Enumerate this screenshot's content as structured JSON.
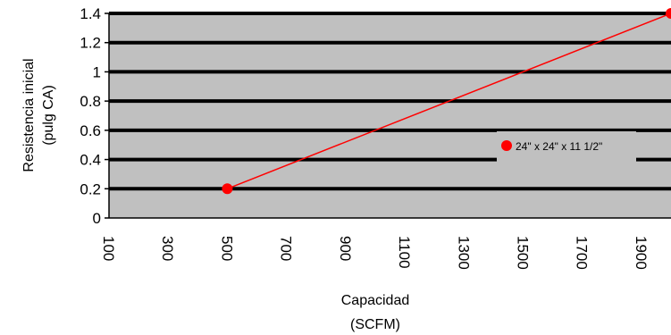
{
  "chart_data": {
    "type": "line",
    "title": "",
    "xlabel": [
      "Capacidad",
      "(SCFM)"
    ],
    "ylabel": [
      "Resistencia inicial",
      "(pulg CA)"
    ],
    "xlim": [
      100,
      2000
    ],
    "ylim": [
      0,
      1.4
    ],
    "xticks": [
      "100",
      "300",
      "500",
      "700",
      "900",
      "1100",
      "1300",
      "1500",
      "1700",
      "1900"
    ],
    "yticks": [
      "0",
      "0.2",
      "0.4",
      "0.6",
      "0.8",
      "1",
      "1.2",
      "1.4"
    ],
    "grid": true,
    "legend_position": "right",
    "series": [
      {
        "name": "24\" x 24\" x 11 1/2\"",
        "color": "#ff0000",
        "x": [
          500,
          2000
        ],
        "y": [
          0.2,
          1.4
        ]
      }
    ],
    "colors": {
      "plot_background": "#c0c0c0",
      "gridline": "#000000",
      "series": "#ff0000"
    }
  }
}
